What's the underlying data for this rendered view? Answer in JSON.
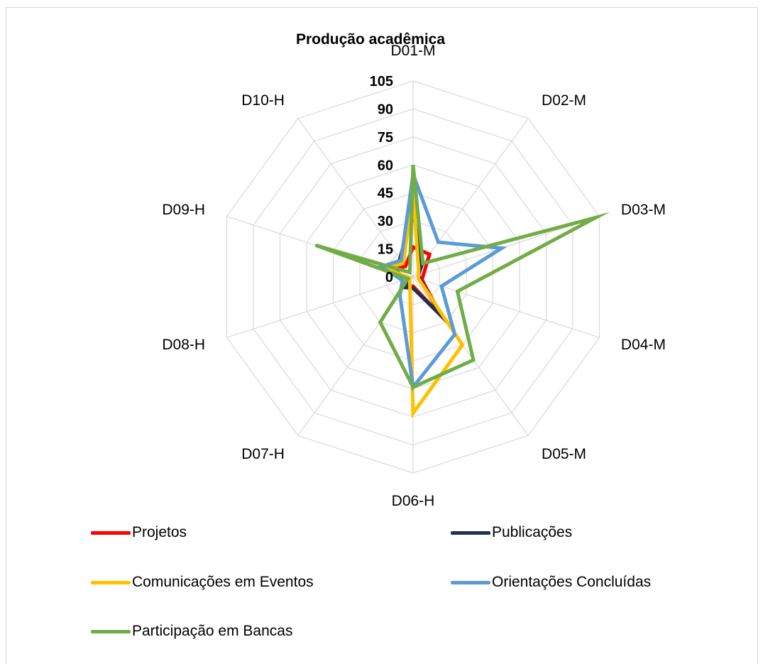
{
  "chart_data": {
    "type": "radar",
    "title": "Produção acadêmica",
    "categories": [
      "D01-M",
      "D02-M",
      "D03-M",
      "D04-M",
      "D05-M",
      "D06-H",
      "D07-H",
      "D08-H",
      "D09-H",
      "D10-H"
    ],
    "radial_ticks": [
      "0",
      "15",
      "30",
      "45",
      "60",
      "75",
      "90",
      "105"
    ],
    "rmax": 105,
    "series": [
      {
        "name": "Projetos",
        "color": "#ff0000",
        "values": [
          16,
          15,
          6,
          5,
          26,
          5,
          6,
          3,
          12,
          7
        ]
      },
      {
        "name": "Publicações",
        "color": "#1f3050",
        "values": [
          36,
          8,
          3,
          4,
          26,
          6,
          7,
          3,
          10,
          12
        ]
      },
      {
        "name": "Comunicações em Eventos",
        "color": "#ffc000",
        "values": [
          45,
          5,
          3,
          3,
          45,
          73,
          3,
          2,
          15,
          9
        ]
      },
      {
        "name": "Orientações Concluídas",
        "color": "#5b9bd5",
        "values": [
          55,
          23,
          50,
          16,
          38,
          59,
          12,
          6,
          18,
          11
        ]
      },
      {
        "name": "Participação em Bancas",
        "color": "#70ad47",
        "values": [
          60,
          9,
          103,
          25,
          55,
          59,
          30,
          3,
          55,
          3
        ]
      }
    ],
    "grid": true,
    "legend_position": "bottom"
  }
}
